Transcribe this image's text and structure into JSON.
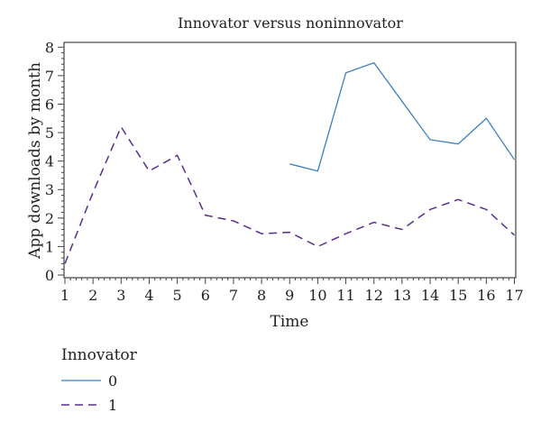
{
  "chart_data": {
    "type": "line",
    "title": "Innovator versus noninnovator",
    "xlabel": "Time",
    "ylabel": "App downloads by month",
    "xlim": [
      1,
      17
    ],
    "ylim": [
      0,
      8
    ],
    "x_ticks": [
      1,
      2,
      3,
      4,
      5,
      6,
      7,
      8,
      9,
      10,
      11,
      12,
      13,
      14,
      15,
      16,
      17
    ],
    "y_ticks": [
      0,
      1,
      2,
      3,
      4,
      5,
      6,
      7,
      8
    ],
    "grid": false,
    "legend": {
      "title": "Innovator",
      "placement": "bottom-left"
    },
    "series": [
      {
        "name": "0",
        "color": "#3a7fc0",
        "style": "solid",
        "x": [
          9,
          10,
          11,
          12,
          13,
          14,
          15,
          16,
          17
        ],
        "values": [
          3.9,
          3.65,
          7.1,
          7.45,
          6.1,
          4.75,
          4.6,
          5.5,
          4.05
        ]
      },
      {
        "name": "1",
        "color": "#5a2d91",
        "style": "dashed",
        "x": [
          1,
          2,
          3,
          4,
          5,
          6,
          7,
          8,
          9,
          10,
          11,
          12,
          13,
          14,
          15,
          16,
          17
        ],
        "values": [
          0.4,
          2.9,
          5.2,
          3.65,
          4.2,
          2.1,
          1.9,
          1.45,
          1.5,
          1.0,
          1.45,
          1.85,
          1.6,
          2.3,
          2.65,
          2.3,
          1.4
        ]
      }
    ]
  }
}
